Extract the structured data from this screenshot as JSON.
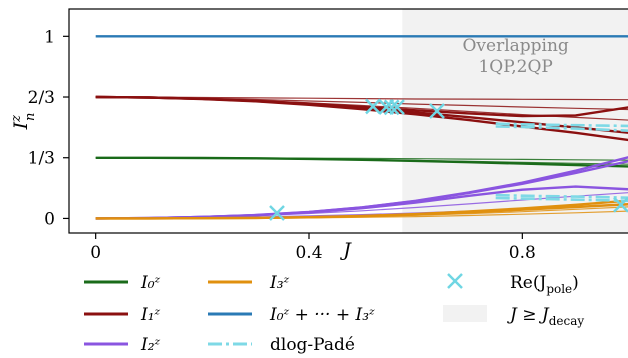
{
  "chart_data": {
    "type": "line",
    "xlabel": "J",
    "ylabel": "I_n^z",
    "xlim": [
      -0.05,
      1.0
    ],
    "ylim": [
      -0.08,
      1.15
    ],
    "x_ticks": [
      {
        "value": 0,
        "label": "0"
      },
      {
        "value": 0.4,
        "label": "0.4"
      },
      {
        "value": 0.8,
        "label": "0.8"
      }
    ],
    "y_ticks": [
      {
        "value": 0,
        "label": "0"
      },
      {
        "value": 0.3333,
        "label": "1/3"
      },
      {
        "value": 0.6667,
        "label": "2/3"
      },
      {
        "value": 1,
        "label": "1"
      }
    ],
    "band": {
      "x_start": 0.575,
      "x_end": 1.0,
      "label_lines": [
        "Overlapping",
        "1QP,2QP"
      ]
    },
    "colors": {
      "I0": "#1a6b1a",
      "I1": "#8b1010",
      "I2": "#8a55e0",
      "I3": "#e0900f",
      "sum": "#2a7ab5",
      "pade": "#7ed9e6",
      "pole": "#6fd6e3",
      "band": "#f2f2f2"
    },
    "series": [
      {
        "key": "sum",
        "x": [
          0,
          0.1,
          0.2,
          0.3,
          0.4,
          0.5,
          0.6,
          0.7,
          0.8,
          0.9,
          1.0
        ],
        "y": [
          1,
          1,
          1,
          1,
          1,
          1,
          1,
          1,
          1,
          1,
          1
        ]
      },
      {
        "key": "I1",
        "x": [
          0,
          0.1,
          0.2,
          0.3,
          0.4,
          0.5,
          0.6,
          0.7,
          0.8,
          0.9,
          1.0
        ],
        "y": [
          0.667,
          0.664,
          0.657,
          0.645,
          0.628,
          0.606,
          0.582,
          0.556,
          0.528,
          0.5,
          0.47
        ]
      },
      {
        "key": "I1",
        "x": [
          0,
          0.1,
          0.2,
          0.3,
          0.4,
          0.5,
          0.6,
          0.7,
          0.8,
          0.9,
          1.0
        ],
        "y": [
          0.667,
          0.664,
          0.656,
          0.643,
          0.624,
          0.6,
          0.572,
          0.54,
          0.505,
          0.47,
          0.43
        ]
      },
      {
        "key": "I1",
        "x": [
          0,
          0.1,
          0.2,
          0.3,
          0.4,
          0.5,
          0.6,
          0.7,
          0.8,
          0.9,
          1.0
        ],
        "y": [
          0.667,
          0.664,
          0.657,
          0.645,
          0.63,
          0.612,
          0.594,
          0.577,
          0.562,
          0.566,
          0.61
        ]
      },
      {
        "key": "I1",
        "x": [
          0,
          0.1,
          0.2,
          0.3,
          0.4,
          0.5,
          0.6,
          0.7,
          0.8,
          0.9,
          1.0
        ],
        "y": [
          0.667,
          0.664,
          0.658,
          0.648,
          0.635,
          0.62,
          0.604,
          0.587,
          0.57,
          0.555,
          0.54
        ],
        "thin": true
      },
      {
        "key": "I1",
        "x": [
          0,
          0.1,
          0.2,
          0.3,
          0.4,
          0.5,
          0.6,
          0.7,
          0.8,
          0.9,
          1.0
        ],
        "y": [
          0.667,
          0.665,
          0.66,
          0.653,
          0.645,
          0.637,
          0.628,
          0.62,
          0.612,
          0.605,
          0.598
        ],
        "thin": true
      },
      {
        "key": "I1",
        "x": [
          0,
          0.1,
          0.2,
          0.3,
          0.4,
          0.5,
          0.6,
          0.7,
          0.8,
          0.9,
          1.0
        ],
        "y": [
          0.667,
          0.666,
          0.664,
          0.662,
          0.66,
          0.658,
          0.656,
          0.655,
          0.654,
          0.653,
          0.652
        ],
        "thin": true
      },
      {
        "key": "I0",
        "x": [
          0,
          0.1,
          0.2,
          0.3,
          0.4,
          0.5,
          0.6,
          0.7,
          0.8,
          0.9,
          1.0
        ],
        "y": [
          0.333,
          0.333,
          0.332,
          0.33,
          0.327,
          0.322,
          0.316,
          0.309,
          0.301,
          0.293,
          0.285
        ]
      },
      {
        "key": "I0",
        "x": [
          0,
          0.1,
          0.2,
          0.3,
          0.4,
          0.5,
          0.6,
          0.7,
          0.8,
          0.9,
          1.0
        ],
        "y": [
          0.333,
          0.333,
          0.332,
          0.33,
          0.327,
          0.323,
          0.318,
          0.313,
          0.308,
          0.303,
          0.298
        ],
        "thin": true
      },
      {
        "key": "I0",
        "x": [
          0,
          0.1,
          0.2,
          0.3,
          0.4,
          0.5,
          0.6,
          0.7,
          0.8,
          0.9,
          1.0
        ],
        "y": [
          0.333,
          0.333,
          0.333,
          0.332,
          0.331,
          0.33,
          0.328,
          0.326,
          0.324,
          0.322,
          0.32
        ],
        "thin": true
      },
      {
        "key": "I2",
        "x": [
          0,
          0.1,
          0.2,
          0.3,
          0.4,
          0.5,
          0.6,
          0.7,
          0.8,
          0.9,
          1.0
        ],
        "y": [
          0.0,
          0.002,
          0.008,
          0.018,
          0.035,
          0.06,
          0.095,
          0.14,
          0.19,
          0.25,
          0.315
        ]
      },
      {
        "key": "I2",
        "x": [
          0,
          0.1,
          0.2,
          0.3,
          0.4,
          0.5,
          0.6,
          0.7,
          0.8,
          0.9,
          1.0
        ],
        "y": [
          0.0,
          0.002,
          0.008,
          0.019,
          0.036,
          0.061,
          0.097,
          0.143,
          0.196,
          0.262,
          0.337
        ]
      },
      {
        "key": "I2",
        "x": [
          0,
          0.1,
          0.2,
          0.3,
          0.4,
          0.5,
          0.6,
          0.7,
          0.8,
          0.9,
          1.0
        ],
        "y": [
          0.0,
          0.002,
          0.008,
          0.017,
          0.033,
          0.056,
          0.087,
          0.124,
          0.158,
          0.175,
          0.16
        ]
      },
      {
        "key": "I2",
        "x": [
          0,
          0.1,
          0.2,
          0.3,
          0.4,
          0.5,
          0.6,
          0.7,
          0.8,
          0.9,
          1.0
        ],
        "y": [
          0.0,
          0.002,
          0.007,
          0.015,
          0.027,
          0.042,
          0.06,
          0.08,
          0.101,
          0.122,
          0.142
        ],
        "thin": true
      },
      {
        "key": "I2",
        "x": [
          0,
          0.1,
          0.2,
          0.3,
          0.4,
          0.5,
          0.6,
          0.7,
          0.8,
          0.9,
          1.0
        ],
        "y": [
          0.0,
          0.001,
          0.004,
          0.008,
          0.014,
          0.021,
          0.03,
          0.04,
          0.051,
          0.063,
          0.075
        ],
        "thin": true
      },
      {
        "key": "I3",
        "x": [
          0,
          0.1,
          0.2,
          0.3,
          0.4,
          0.5,
          0.6,
          0.7,
          0.8,
          0.9,
          1.0
        ],
        "y": [
          0.0,
          0.0,
          0.001,
          0.003,
          0.007,
          0.014,
          0.024,
          0.038,
          0.055,
          0.075,
          0.098
        ]
      },
      {
        "key": "I3",
        "x": [
          0,
          0.1,
          0.2,
          0.3,
          0.4,
          0.5,
          0.6,
          0.7,
          0.8,
          0.9,
          1.0
        ],
        "y": [
          0.0,
          0.0,
          0.001,
          0.003,
          0.006,
          0.012,
          0.021,
          0.033,
          0.048,
          0.063,
          0.078
        ]
      },
      {
        "key": "I3",
        "x": [
          0,
          0.1,
          0.2,
          0.3,
          0.4,
          0.5,
          0.6,
          0.7,
          0.8,
          0.9,
          1.0
        ],
        "y": [
          0.0,
          0.0,
          0.001,
          0.002,
          0.005,
          0.01,
          0.017,
          0.026,
          0.037,
          0.05,
          0.064
        ],
        "thin": true
      },
      {
        "key": "I3",
        "x": [
          0,
          0.1,
          0.2,
          0.3,
          0.4,
          0.5,
          0.6,
          0.7,
          0.8,
          0.9,
          1.0
        ],
        "y": [
          0.0,
          0.0,
          0.0,
          0.001,
          0.003,
          0.006,
          0.01,
          0.016,
          0.023,
          0.031,
          0.04
        ],
        "thin": true
      },
      {
        "key": "pade",
        "x": [
          0.75,
          0.8,
          0.85,
          0.9,
          0.95,
          1.0
        ],
        "y": [
          0.505,
          0.502,
          0.498,
          0.493,
          0.488,
          0.482
        ]
      },
      {
        "key": "pade",
        "x": [
          0.75,
          0.8,
          0.85,
          0.9,
          0.95,
          1.0
        ],
        "y": [
          0.52,
          0.517,
          0.514,
          0.512,
          0.51,
          0.508
        ]
      },
      {
        "key": "pade",
        "x": [
          0.75,
          0.8,
          0.85,
          0.9,
          0.95,
          1.0
        ],
        "y": [
          0.128,
          0.125,
          0.122,
          0.12,
          0.117,
          0.114
        ]
      },
      {
        "key": "pade",
        "x": [
          0.75,
          0.8,
          0.85,
          0.9,
          0.95,
          1.0
        ],
        "y": [
          0.112,
          0.109,
          0.106,
          0.103,
          0.1,
          0.097
        ]
      }
    ],
    "poles": [
      {
        "x": 0.34,
        "y": 0.03
      },
      {
        "x": 0.52,
        "y": 0.615
      },
      {
        "x": 0.545,
        "y": 0.612
      },
      {
        "x": 0.555,
        "y": 0.61
      },
      {
        "x": 0.565,
        "y": 0.611
      },
      {
        "x": 0.64,
        "y": 0.59
      },
      {
        "x": 0.985,
        "y": 0.075
      }
    ],
    "legend": {
      "I0": "I₀ᶻ",
      "I1": "I₁ᶻ",
      "I2": "I₂ᶻ",
      "I3": "I₃ᶻ",
      "sum": "I₀ᶻ + ··· + I₃ᶻ",
      "pade": "dlog-Padé",
      "pole": "Re(J",
      "pole_sub": "pole",
      "band": "J ≥ J",
      "band_sub": "decay"
    }
  }
}
